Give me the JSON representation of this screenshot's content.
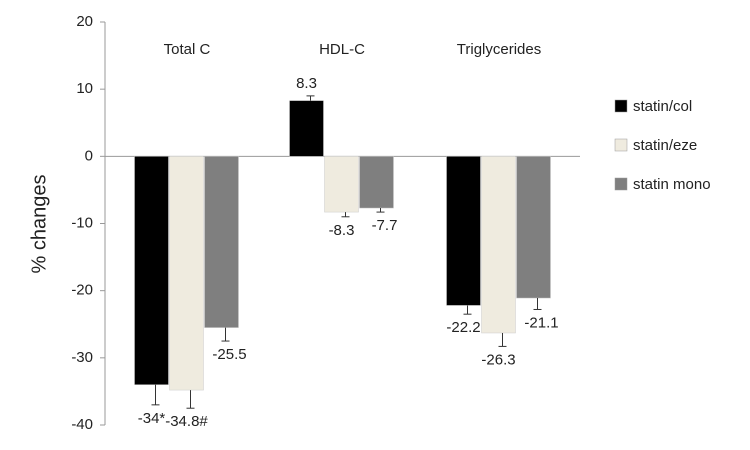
{
  "chart_data": {
    "type": "bar",
    "categories": [
      "Total C",
      "HDL-C",
      "Triglycerides"
    ],
    "y_label": "% changes",
    "ylim": [
      -40,
      20
    ],
    "yticks": [
      -40,
      -30,
      -20,
      -10,
      0,
      10,
      20
    ],
    "legend": "right",
    "series": [
      {
        "name": "statin/col",
        "color": "#000000",
        "values": [
          -34,
          8.3,
          -22.2
        ],
        "errors": [
          3,
          0.7,
          1.3
        ],
        "value_labels": [
          "-34*",
          "8.3",
          "-22.2"
        ]
      },
      {
        "name": "statin/eze",
        "color": "#efebdf",
        "values": [
          -34.8,
          -8.3,
          -26.3
        ],
        "errors": [
          2.7,
          0.7,
          2
        ],
        "value_labels": [
          "-34.8#",
          "-8.3",
          "-26.3"
        ]
      },
      {
        "name": "statin mono",
        "color": "#7f7f7f",
        "values": [
          -25.5,
          -7.7,
          -21.1
        ],
        "errors": [
          2,
          0.6,
          1.7
        ]
      }
    ]
  }
}
